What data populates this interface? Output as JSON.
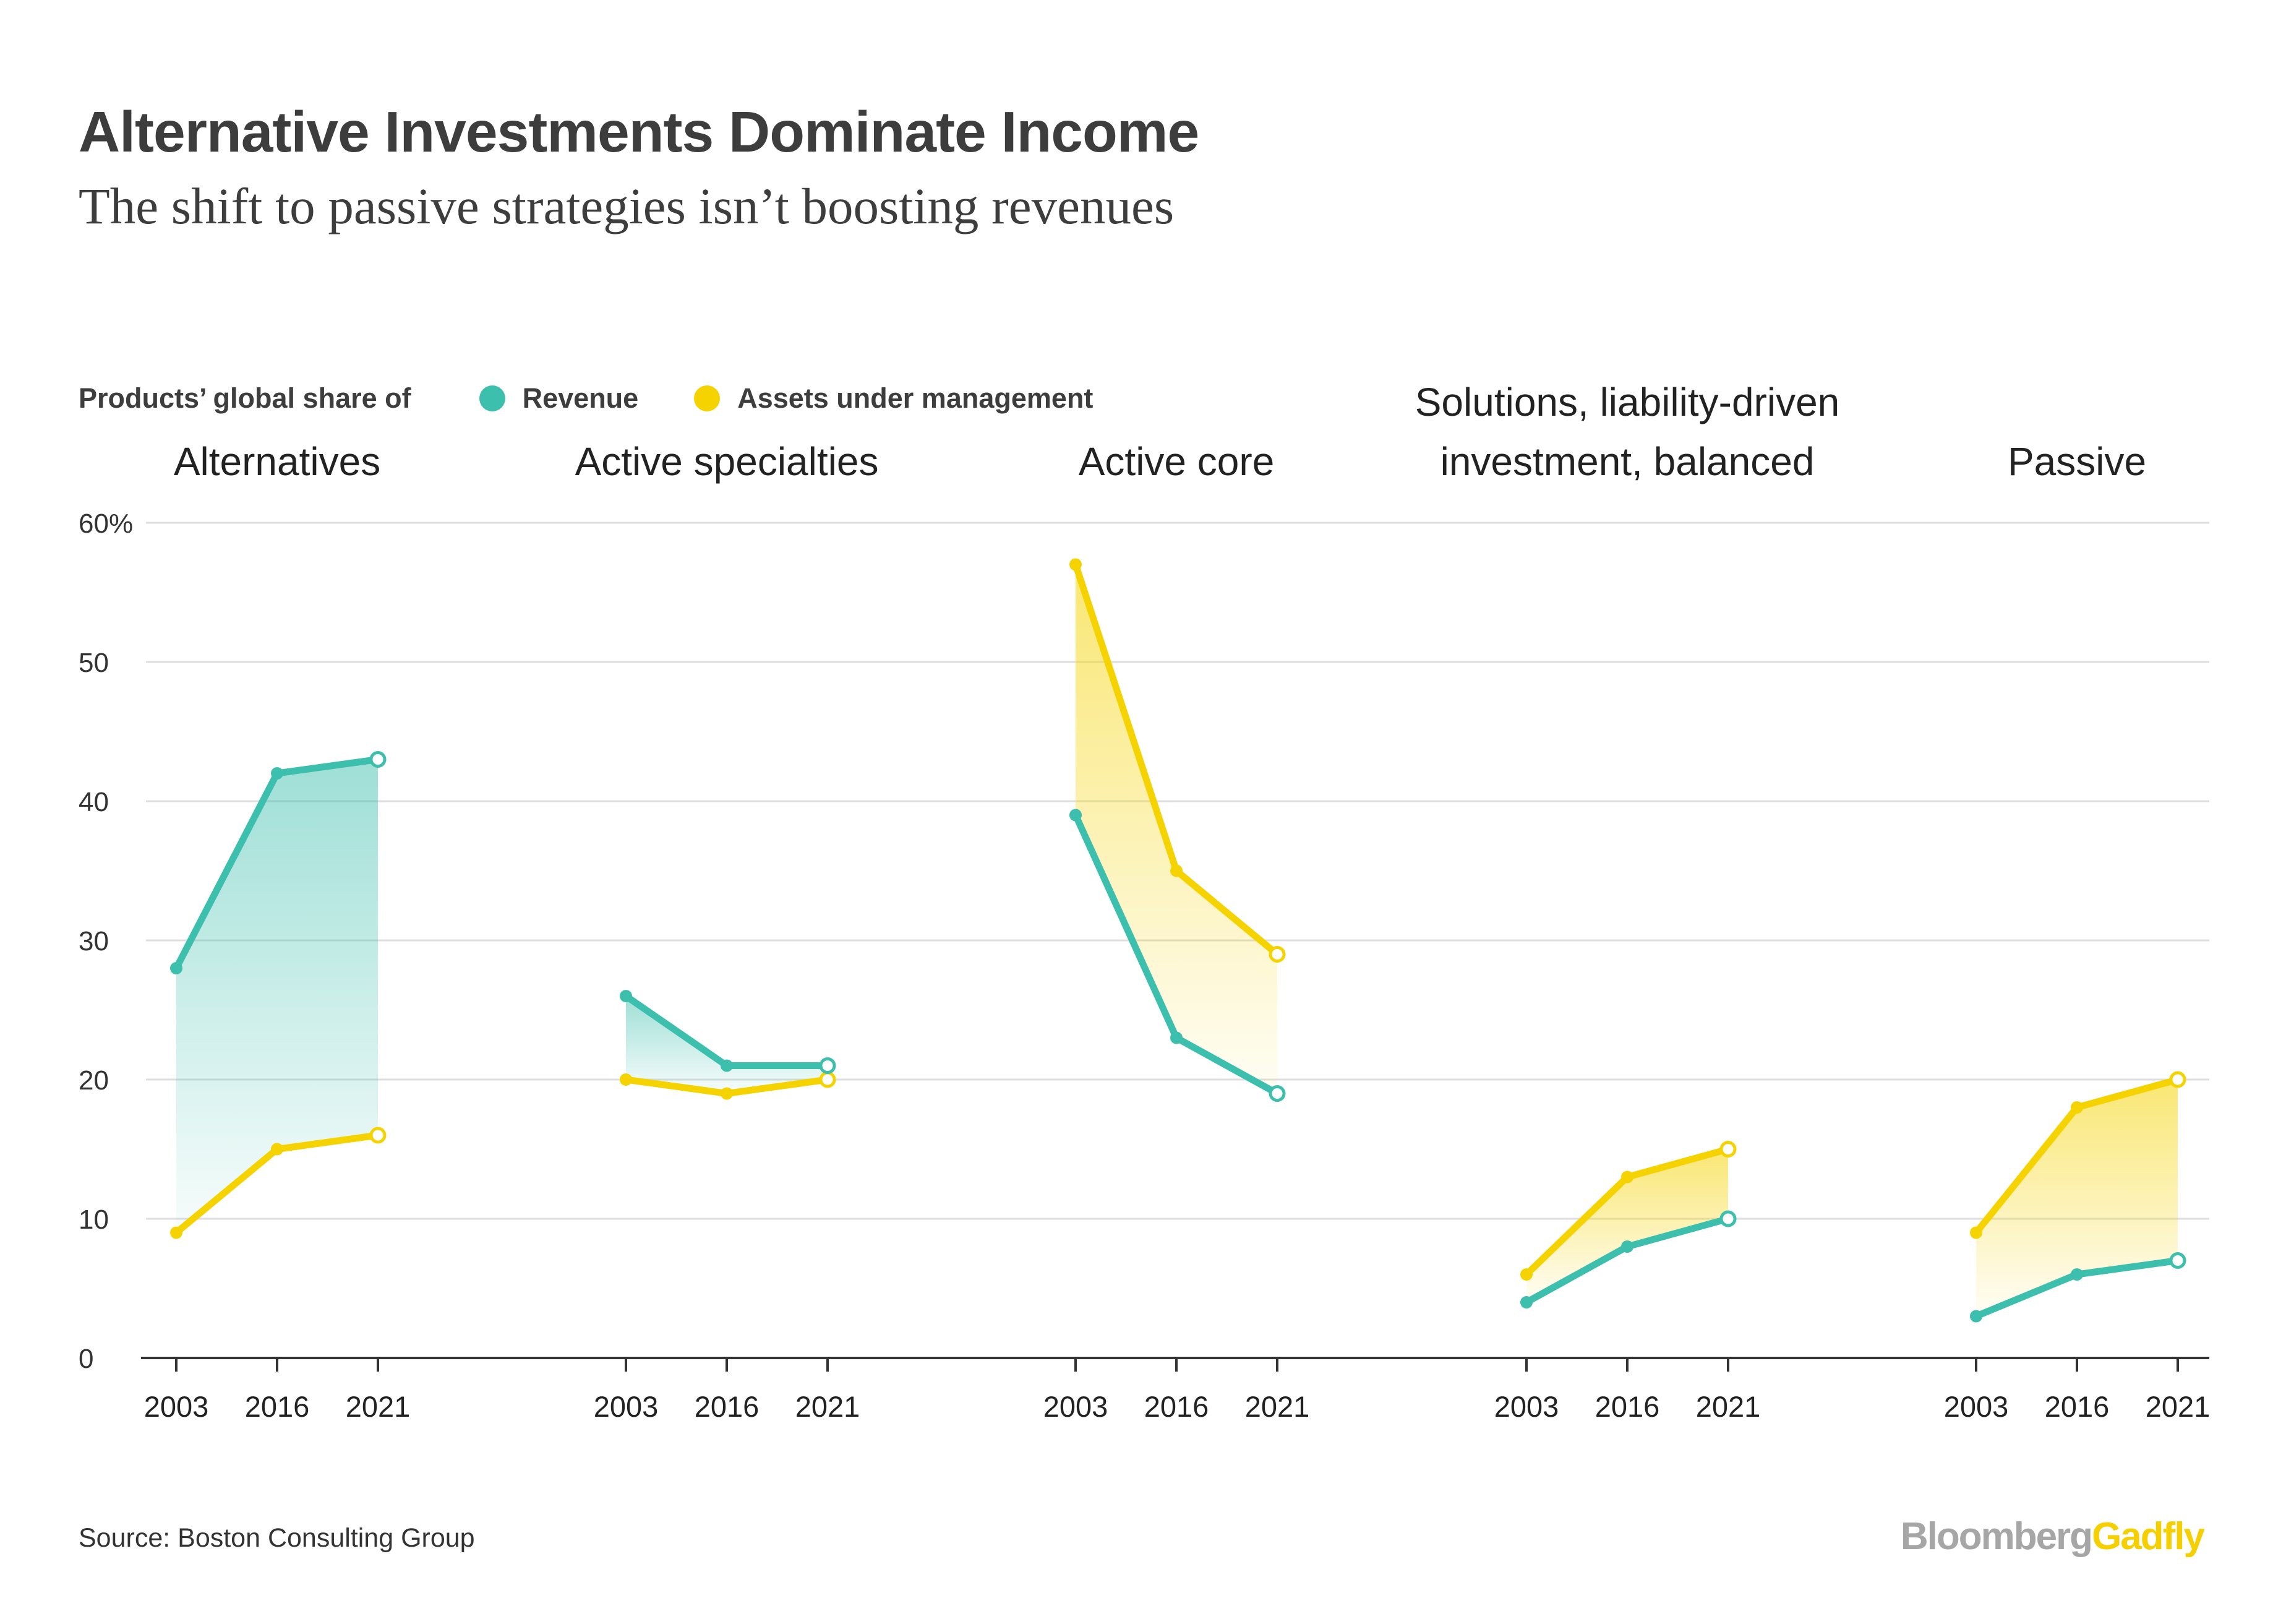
{
  "header": {
    "title": "Alternative Investments Dominate Income",
    "subtitle": "The shift to passive strategies isn’t boosting revenues"
  },
  "legend": {
    "prefix": "Products’ global share of",
    "items": [
      {
        "label": "Revenue",
        "color": "#3dbfad"
      },
      {
        "label": "Assets under management",
        "color": "#f5d300"
      }
    ]
  },
  "footer": {
    "source": "Source: Boston Consulting Group",
    "brand_part1": "Bloomberg",
    "brand_part2": "Gadfly"
  },
  "chart_data": {
    "type": "line",
    "y_unit": "%",
    "ylim": [
      0,
      60
    ],
    "yticks": [
      0,
      10,
      20,
      30,
      40,
      50,
      60
    ],
    "ytick_labels": [
      "0",
      "10",
      "20",
      "30",
      "40",
      "50",
      "60%"
    ],
    "x": [
      "2003",
      "2016",
      "2021"
    ],
    "grid": true,
    "legend_position": "top-left",
    "series_names": [
      "Revenue",
      "Assets under management"
    ],
    "colors": {
      "revenue": "#3dbfad",
      "aum": "#f5d300",
      "grid": "#dedede",
      "axis": "#333333"
    },
    "panels": [
      {
        "title_lines": [
          "Alternatives"
        ],
        "revenue": [
          28,
          42,
          43
        ],
        "aum": [
          9,
          15,
          16
        ]
      },
      {
        "title_lines": [
          "Active specialties"
        ],
        "revenue": [
          26,
          21,
          21
        ],
        "aum": [
          20,
          19,
          20
        ]
      },
      {
        "title_lines": [
          "Active core"
        ],
        "revenue": [
          39,
          23,
          19
        ],
        "aum": [
          57,
          35,
          29
        ]
      },
      {
        "title_lines": [
          "Solutions, liability-driven",
          "investment, balanced"
        ],
        "revenue": [
          4,
          8,
          10
        ],
        "aum": [
          6,
          13,
          15
        ]
      },
      {
        "title_lines": [
          "Passive"
        ],
        "revenue": [
          3,
          6,
          7
        ],
        "aum": [
          9,
          18,
          20
        ]
      }
    ]
  }
}
